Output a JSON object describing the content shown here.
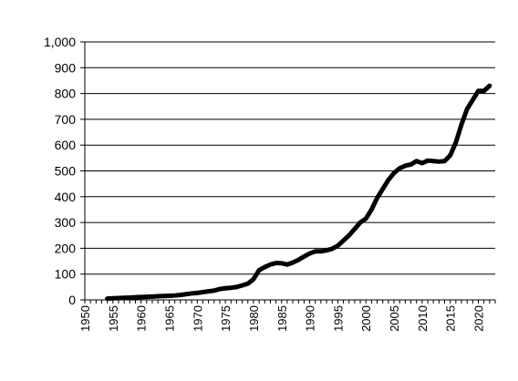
{
  "chart_data": {
    "type": "line",
    "title": "",
    "xlabel": "",
    "ylabel": "",
    "xlim": [
      1950,
      2023
    ],
    "ylim": [
      0,
      1000
    ],
    "grid": "horizontal",
    "legend": "none",
    "line_color": "#000000",
    "y_ticks": [
      0,
      100,
      200,
      300,
      400,
      500,
      600,
      700,
      800,
      900,
      1000
    ],
    "y_tick_labels": [
      "0",
      "100",
      "200",
      "300",
      "400",
      "500",
      "600",
      "700",
      "800",
      "900",
      "1,000"
    ],
    "x_ticks": [
      1950,
      1955,
      1960,
      1965,
      1970,
      1975,
      1980,
      1985,
      1990,
      1995,
      2000,
      2005,
      2010,
      2015,
      2020
    ],
    "x_tick_labels": [
      "1950",
      "1955",
      "1960",
      "1965",
      "1970",
      "1975",
      "1980",
      "1985",
      "1990",
      "1995",
      "2000",
      "2005",
      "2010",
      "2015",
      "2020"
    ],
    "series": [
      {
        "x": [
          1954,
          1955,
          1956,
          1957,
          1958,
          1959,
          1960,
          1961,
          1962,
          1963,
          1964,
          1965,
          1966,
          1967,
          1968,
          1969,
          1970,
          1971,
          1972,
          1973,
          1974,
          1975,
          1976,
          1977,
          1978,
          1979,
          1980,
          1981,
          1982,
          1983,
          1984,
          1985,
          1986,
          1987,
          1988,
          1989,
          1990,
          1991,
          1992,
          1993,
          1994,
          1995,
          1996,
          1997,
          1998,
          1999,
          2000,
          2001,
          2002,
          2003,
          2004,
          2005,
          2006,
          2007,
          2008,
          2009,
          2010,
          2011,
          2012,
          2013,
          2014,
          2015,
          2016,
          2017,
          2018,
          2019,
          2020,
          2021,
          2022
        ],
        "values": [
          5,
          6,
          7,
          8,
          9,
          10,
          11,
          12,
          13,
          14,
          15,
          16,
          17,
          19,
          22,
          25,
          27,
          30,
          33,
          36,
          42,
          45,
          47,
          50,
          56,
          63,
          80,
          115,
          127,
          137,
          143,
          142,
          137,
          145,
          155,
          168,
          180,
          188,
          188,
          192,
          198,
          210,
          230,
          250,
          275,
          300,
          315,
          350,
          395,
          430,
          465,
          492,
          510,
          520,
          525,
          538,
          530,
          540,
          538,
          536,
          538,
          560,
          610,
          680,
          740,
          775,
          810,
          810,
          830
        ]
      }
    ]
  }
}
